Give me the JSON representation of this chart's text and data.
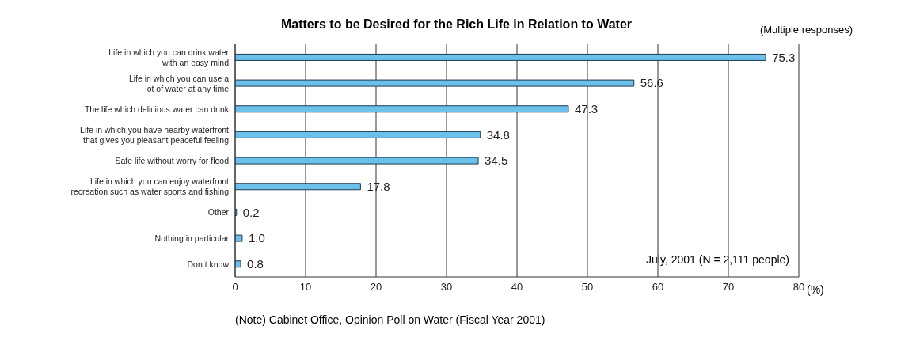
{
  "chart_data": {
    "type": "bar",
    "orientation": "horizontal",
    "title": "Matters to be Desired for the Rich Life in Relation to Water",
    "subtitle": "(Multiple responses)",
    "xlabel": "(%)",
    "categories": [
      "Life in which you can drink water\nwith an easy mind",
      "Life in which you can use a\nlot of water at any time",
      "The life which delicious water can drink",
      "Life in which you have nearby waterfront\nthat gives you pleasant peaceful feeling",
      "Safe life without worry for flood",
      "Life in which you can enjoy waterfront\nrecreation such as water sports and fishing",
      "Other",
      "Nothing in particular",
      "Don t know"
    ],
    "values": [
      75.3,
      56.6,
      47.3,
      34.8,
      34.5,
      17.8,
      0.2,
      1.0,
      0.8
    ],
    "value_labels": [
      "75.3",
      "56.6",
      "47.3",
      "34.8",
      "34.5",
      "17.8",
      "0.2",
      "1.0",
      "0.8"
    ],
    "color": "#6cc0ea",
    "xlim": [
      0,
      80
    ],
    "xticks": [
      0,
      10,
      20,
      30,
      40,
      50,
      60,
      70,
      80
    ],
    "grid": "x",
    "annotations": [
      "July, 2001 (N = 2,111 people)",
      "(Note) Cabinet Office,  Opinion Poll on Water  (Fiscal Year 2001)"
    ]
  }
}
